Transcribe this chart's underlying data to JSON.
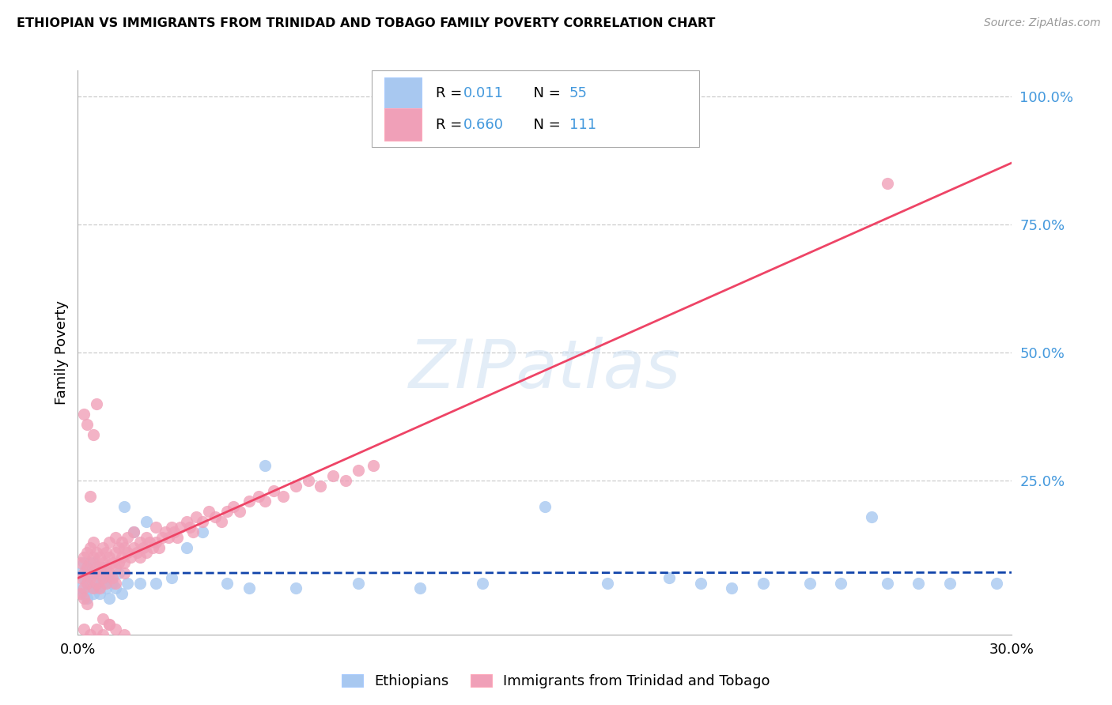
{
  "title": "ETHIOPIAN VS IMMIGRANTS FROM TRINIDAD AND TOBAGO FAMILY POVERTY CORRELATION CHART",
  "source": "Source: ZipAtlas.com",
  "ylabel": "Family Poverty",
  "R_ethiopians": "0.011",
  "N_ethiopians": "55",
  "R_tt": "0.660",
  "N_tt": "111",
  "color_ethiopians": "#A8C8F0",
  "color_tt": "#F0A0B8",
  "line_color_ethiopians": "#1144AA",
  "line_color_tt": "#EE4466",
  "xlim": [
    0.0,
    0.3
  ],
  "ylim": [
    -0.05,
    1.05
  ],
  "ytick_values": [
    0.0,
    0.25,
    0.5,
    0.75,
    1.0
  ],
  "xtick_values": [
    0.0,
    0.3
  ],
  "xtick_labels": [
    "0.0%",
    "30.0%"
  ],
  "legend_ethiopians": "Ethiopians",
  "legend_tt": "Immigrants from Trinidad and Tobago",
  "watermark": "ZIPatlas",
  "blue_text_color": "#4499DD",
  "grid_color": "#CCCCCC",
  "eth_x": [
    0.001,
    0.001,
    0.002,
    0.002,
    0.002,
    0.003,
    0.003,
    0.003,
    0.004,
    0.004,
    0.005,
    0.005,
    0.005,
    0.006,
    0.006,
    0.007,
    0.007,
    0.008,
    0.008,
    0.009,
    0.01,
    0.01,
    0.011,
    0.012,
    0.013,
    0.014,
    0.015,
    0.016,
    0.018,
    0.02,
    0.022,
    0.025,
    0.03,
    0.035,
    0.04,
    0.048,
    0.055,
    0.06,
    0.07,
    0.09,
    0.11,
    0.13,
    0.15,
    0.17,
    0.19,
    0.2,
    0.21,
    0.22,
    0.235,
    0.245,
    0.255,
    0.26,
    0.27,
    0.28,
    0.295
  ],
  "eth_y": [
    0.04,
    0.07,
    0.03,
    0.06,
    0.09,
    0.05,
    0.08,
    0.02,
    0.04,
    0.07,
    0.03,
    0.06,
    0.09,
    0.04,
    0.07,
    0.03,
    0.06,
    0.05,
    0.08,
    0.04,
    0.06,
    0.02,
    0.05,
    0.04,
    0.07,
    0.03,
    0.2,
    0.05,
    0.15,
    0.05,
    0.17,
    0.05,
    0.06,
    0.12,
    0.15,
    0.05,
    0.04,
    0.28,
    0.04,
    0.05,
    0.04,
    0.05,
    0.2,
    0.05,
    0.06,
    0.05,
    0.04,
    0.05,
    0.05,
    0.05,
    0.18,
    0.05,
    0.05,
    0.05,
    0.05
  ],
  "tt_x": [
    0.001,
    0.001,
    0.001,
    0.002,
    0.002,
    0.002,
    0.002,
    0.003,
    0.003,
    0.003,
    0.003,
    0.004,
    0.004,
    0.004,
    0.005,
    0.005,
    0.005,
    0.005,
    0.006,
    0.006,
    0.006,
    0.007,
    0.007,
    0.007,
    0.008,
    0.008,
    0.008,
    0.009,
    0.009,
    0.009,
    0.01,
    0.01,
    0.01,
    0.011,
    0.011,
    0.012,
    0.012,
    0.012,
    0.013,
    0.013,
    0.014,
    0.014,
    0.015,
    0.015,
    0.016,
    0.016,
    0.017,
    0.018,
    0.018,
    0.019,
    0.02,
    0.02,
    0.021,
    0.022,
    0.022,
    0.023,
    0.024,
    0.025,
    0.025,
    0.026,
    0.027,
    0.028,
    0.029,
    0.03,
    0.031,
    0.032,
    0.033,
    0.035,
    0.036,
    0.037,
    0.038,
    0.04,
    0.042,
    0.044,
    0.046,
    0.048,
    0.05,
    0.052,
    0.055,
    0.058,
    0.06,
    0.063,
    0.066,
    0.07,
    0.074,
    0.078,
    0.082,
    0.086,
    0.09,
    0.095,
    0.002,
    0.003,
    0.004,
    0.005,
    0.006,
    0.007,
    0.008,
    0.01,
    0.012,
    0.015,
    0.002,
    0.003,
    0.004,
    0.005,
    0.006,
    0.007,
    0.008,
    0.01,
    0.012,
    0.015,
    0.26
  ],
  "tt_y": [
    0.03,
    0.06,
    0.09,
    0.04,
    0.07,
    0.1,
    0.02,
    0.05,
    0.08,
    0.11,
    0.01,
    0.06,
    0.09,
    0.12,
    0.04,
    0.07,
    0.1,
    0.13,
    0.05,
    0.08,
    0.11,
    0.04,
    0.07,
    0.1,
    0.06,
    0.09,
    0.12,
    0.05,
    0.08,
    0.11,
    0.07,
    0.1,
    0.13,
    0.06,
    0.09,
    0.08,
    0.11,
    0.14,
    0.09,
    0.12,
    0.1,
    0.13,
    0.09,
    0.12,
    0.11,
    0.14,
    0.1,
    0.12,
    0.15,
    0.11,
    0.1,
    0.13,
    0.12,
    0.11,
    0.14,
    0.13,
    0.12,
    0.13,
    0.16,
    0.12,
    0.14,
    0.15,
    0.14,
    0.16,
    0.15,
    0.14,
    0.16,
    0.17,
    0.16,
    0.15,
    0.18,
    0.17,
    0.19,
    0.18,
    0.17,
    0.19,
    0.2,
    0.19,
    0.21,
    0.22,
    0.21,
    0.23,
    0.22,
    0.24,
    0.25,
    0.24,
    0.26,
    0.25,
    0.27,
    0.28,
    0.38,
    0.36,
    0.22,
    0.34,
    0.4,
    0.08,
    -0.02,
    -0.03,
    0.05,
    0.07,
    -0.04,
    -0.06,
    -0.05,
    -0.07,
    -0.04,
    -0.06,
    -0.05,
    -0.03,
    -0.04,
    -0.05,
    0.83
  ]
}
